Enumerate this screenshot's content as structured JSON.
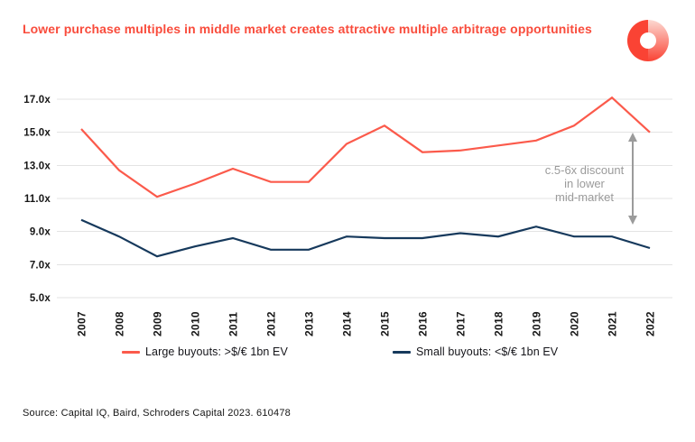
{
  "header": {
    "title": "Lower purchase multiples in middle market creates attractive multiple arbitrage opportunities",
    "title_color": "#f94c3c"
  },
  "logo": {
    "name": "schroders-capital-logo",
    "solid_color": "#fa4334",
    "gradient_top": "#fcd9d2",
    "gradient_bottom": "#fa4334"
  },
  "chart_data": {
    "type": "line",
    "x": [
      "2007",
      "2008",
      "2009",
      "2010",
      "2011",
      "2012",
      "2013",
      "2014",
      "2015",
      "2016",
      "2017",
      "2018",
      "2019",
      "2020",
      "2021",
      "2022"
    ],
    "series": [
      {
        "name": "Large buyouts: >$/€ 1bn EV",
        "color": "#fb5a4b",
        "values": [
          15.2,
          12.7,
          11.1,
          11.9,
          12.8,
          12.0,
          12.0,
          14.3,
          15.4,
          13.8,
          13.9,
          14.2,
          14.5,
          15.4,
          17.1,
          15.0
        ]
      },
      {
        "name": "Small buyouts: <$/€ 1bn EV",
        "color": "#16395c",
        "values": [
          9.7,
          8.7,
          7.5,
          8.1,
          8.6,
          7.9,
          7.9,
          8.7,
          8.6,
          8.6,
          8.9,
          8.7,
          9.3,
          8.7,
          8.7,
          8.0
        ]
      }
    ],
    "yticks": [
      "17.0x",
      "15.0x",
      "13.0x",
      "11.0x",
      "9.0x",
      "7.0x",
      "5.0x"
    ],
    "ylim": [
      5.0,
      17.0
    ],
    "unit": "x",
    "grid": "horizontal",
    "gridline_color": "#e3e3e3",
    "axis_text_color": "#161616",
    "legend_position": "bottom",
    "title": "Lower purchase multiples in middle market creates attractive multiple arbitrage opportunities"
  },
  "annotation": {
    "text": "c.5-6x discount\nin lower\nmid-market",
    "color": "#9b9b9b",
    "arrow_color": "#9b9b9b"
  },
  "footer": {
    "source": "Source: Capital IQ, Baird, Schroders Capital 2023. 610478"
  }
}
